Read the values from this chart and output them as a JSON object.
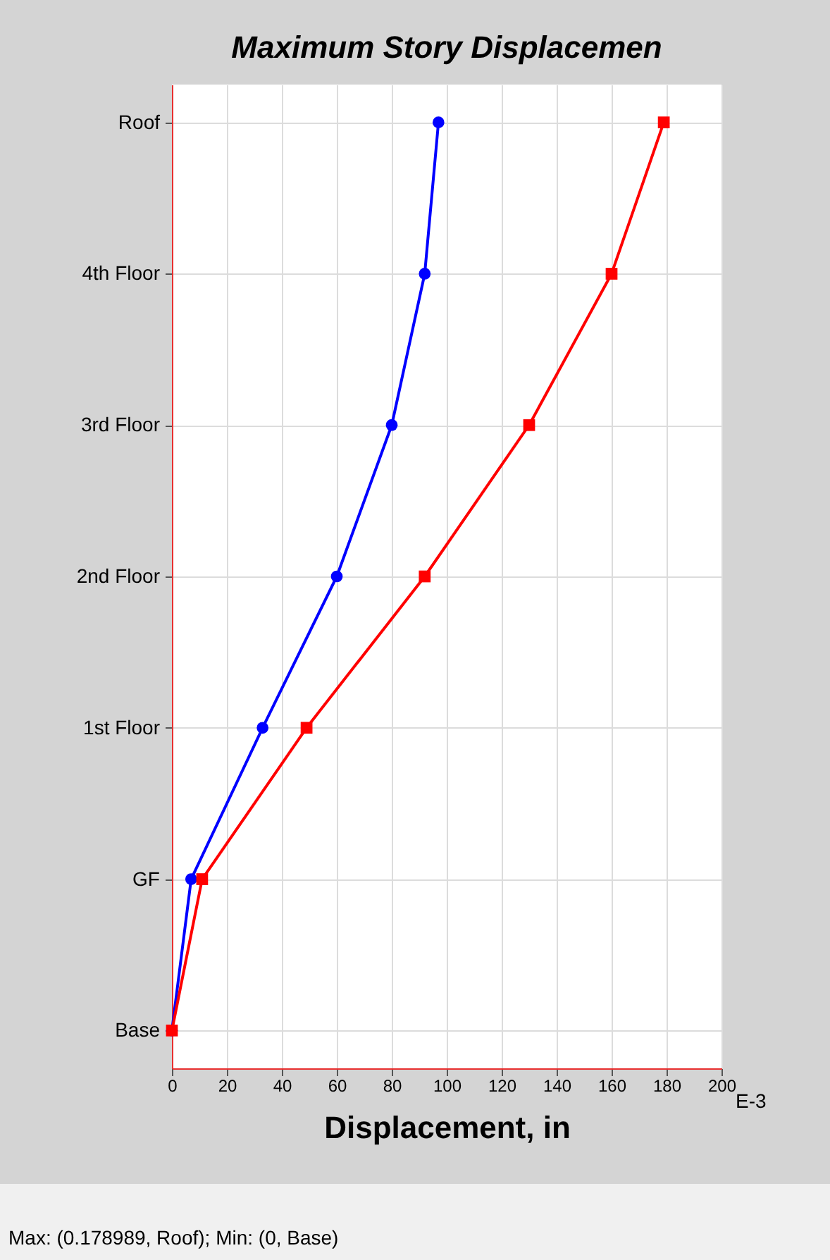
{
  "chart_data": {
    "type": "line",
    "title": "Maximum Story Displacemen",
    "xlabel": "Displacement, in",
    "orientation": "horizontal",
    "categories": [
      "Roof",
      "4th Floor",
      "3rd Floor",
      "2nd Floor",
      "1st Floor",
      "GF",
      "Base"
    ],
    "series": [
      {
        "color": "#0000ff",
        "marker": "circle",
        "values": [
          97,
          92,
          80,
          60,
          33,
          7,
          0
        ]
      },
      {
        "color": "#ff0000",
        "marker": "square",
        "values": [
          179,
          160,
          130,
          92,
          49,
          11,
          0
        ]
      }
    ],
    "xlim": [
      0,
      200
    ],
    "xticks": [
      0,
      20,
      40,
      60,
      80,
      100,
      120,
      140,
      160,
      180,
      200
    ],
    "grid": true,
    "annotations": [
      "E-3",
      "Max: (0.178989, Roof);   Min: (0, Base)"
    ]
  }
}
